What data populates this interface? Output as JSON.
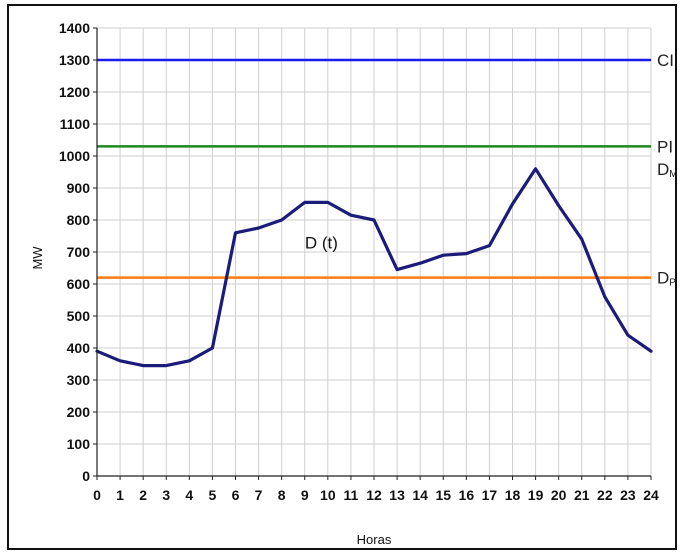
{
  "chart_data": {
    "type": "line",
    "xlabel": "Horas",
    "ylabel": "MW",
    "xlim": [
      0,
      24
    ],
    "ylim": [
      0,
      1400
    ],
    "x_ticks": [
      0,
      1,
      2,
      3,
      4,
      5,
      6,
      7,
      8,
      9,
      10,
      11,
      12,
      13,
      14,
      15,
      16,
      17,
      18,
      19,
      20,
      21,
      22,
      23,
      24
    ],
    "y_ticks": [
      0,
      100,
      200,
      300,
      400,
      500,
      600,
      700,
      800,
      900,
      1000,
      1100,
      1200,
      1300,
      1400
    ],
    "grid": true,
    "series": [
      {
        "name": "D (t)",
        "color": "#1b1b7a",
        "x": [
          0,
          1,
          2,
          3,
          4,
          5,
          6,
          7,
          8,
          9,
          10,
          11,
          12,
          13,
          14,
          15,
          16,
          17,
          18,
          19,
          20,
          21,
          22,
          23,
          24
        ],
        "y": [
          390,
          360,
          345,
          345,
          360,
          400,
          760,
          775,
          800,
          855,
          855,
          815,
          800,
          645,
          665,
          690,
          695,
          720,
          850,
          960,
          845,
          740,
          560,
          440,
          390
        ]
      }
    ],
    "reference_lines": [
      {
        "label": "CI",
        "sub": "",
        "value": 1300,
        "color": "#1a1aee"
      },
      {
        "label": "PI",
        "sub": "",
        "value": 1030,
        "color": "#1e8a1e"
      },
      {
        "label": "D",
        "sub": "M",
        "value": 960,
        "color": ""
      },
      {
        "label": "D",
        "sub": "P",
        "value": 620,
        "color": "#ff7a10"
      }
    ],
    "annotations": [
      {
        "text": "D (t)",
        "x": 10.5,
        "y": 730
      }
    ]
  }
}
